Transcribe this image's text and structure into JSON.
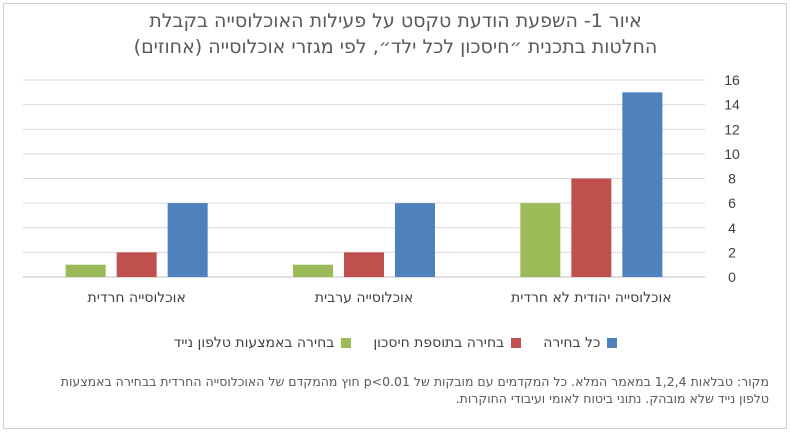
{
  "chart_data": {
    "type": "bar",
    "title": "איור 1- השפעת הודעת טקסט על פעילות האוכלוסייה בקבלת החלטות בתכנית ״חיסכון לכל ילד״, לפי מגזרי אוכלוסייה (אחוזים)",
    "title_lines": [
      "איור 1- השפעת הודעת טקסט על פעילות האוכלוסייה בקבלת",
      "החלטות בתכנית ״חיסכון לכל ילד״, לפי מגזרי אוכלוסייה (אחוזים)"
    ],
    "categories": [
      "אוכלוסייה יהודית לא חרדית",
      "אוכלוסייה ערבית",
      "אוכלוסייה חרדית"
    ],
    "series": [
      {
        "name": "כל בחירה",
        "color": "#4f81bd",
        "values": [
          15,
          6,
          6
        ]
      },
      {
        "name": "בחירה בתוספת חיסכון",
        "color": "#c0504d",
        "values": [
          8,
          2,
          2
        ]
      },
      {
        "name": "בחירה באמצעות טלפון נייד",
        "color": "#9bbb59",
        "values": [
          6,
          1,
          1
        ]
      }
    ],
    "ylim": [
      0,
      16
    ],
    "yticks": [
      "0",
      "2",
      "4",
      "6",
      "8",
      "10",
      "12",
      "14",
      "16"
    ],
    "ytick_values": [
      0,
      2,
      4,
      6,
      8,
      10,
      12,
      14,
      16
    ],
    "grid": true,
    "y_axis_side": "right",
    "legend_position": "bottom"
  },
  "source_note": "מקור: טבלאות 1,2,4 במאמר המלא. כל המקדמים עם מובקות של p<0.01 חוץ מהמקדם של האוכלוסייה החרדית בבחירה באמצעות טלפון נייד שלא מובהק. נתוני ביטוח לאומי ועיבודי החוקרות."
}
